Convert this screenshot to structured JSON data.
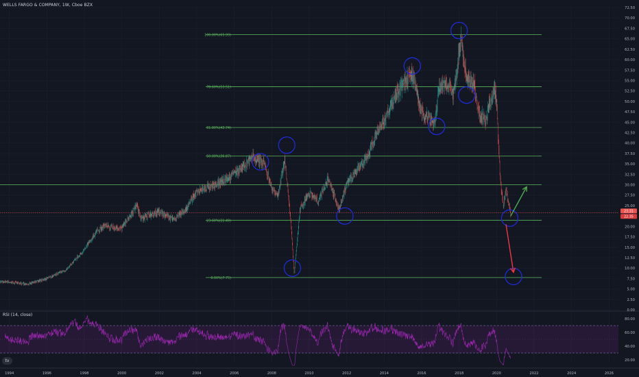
{
  "header": {
    "title": "WELLS FARGO & COMPANY, 1W, Cboe BZX"
  },
  "rsi_panel": {
    "label": "RSI (14, close)",
    "yticks": [
      "80.00",
      "60.00",
      "40.00",
      "20.00"
    ]
  },
  "logo": {
    "text": "tv"
  },
  "price_tags": {
    "upper": "23.31",
    "lower": "22.35"
  },
  "colors": {
    "background": "#131722",
    "fib": "#5cb85c",
    "candle_up": "#26a69a",
    "candle_down": "#ef5350",
    "annotation": "#1f2bd6",
    "arrow_up": "#4caf50",
    "arrow_down": "#f23645",
    "rsi": "#9c27b0"
  },
  "chart_data": [
    {
      "type": "candlestick",
      "title": "WELLS FARGO & COMPANY, 1W, Cboe BZX",
      "x_ticks": [
        "1994",
        "1996",
        "1998",
        "2000",
        "2002",
        "2004",
        "2006",
        "2008",
        "2010",
        "2012",
        "2014",
        "2016",
        "2018",
        "2020",
        "2022",
        "2024",
        "2026"
      ],
      "y_ticks": [
        "0.00",
        "2.50",
        "5.00",
        "7.50",
        "10.00",
        "12.50",
        "15.00",
        "17.50",
        "20.00",
        "22.50",
        "25.00",
        "27.50",
        "30.00",
        "32.50",
        "35.00",
        "37.50",
        "40.00",
        "42.50",
        "45.00",
        "47.50",
        "50.00",
        "52.50",
        "55.00",
        "57.50",
        "60.00",
        "62.50",
        "65.00",
        "67.50",
        "70.00",
        "72.50"
      ],
      "ylim": [
        0,
        73
      ],
      "price_path": [
        [
          1993.5,
          6.8
        ],
        [
          1995.0,
          6.2
        ],
        [
          1996.0,
          7.5
        ],
        [
          1997.0,
          9.5
        ],
        [
          1998.0,
          14.5
        ],
        [
          1998.6,
          18.5
        ],
        [
          1999.0,
          20.0
        ],
        [
          2000.0,
          19.5
        ],
        [
          2000.8,
          25.0
        ],
        [
          2001.0,
          22.0
        ],
        [
          2002.0,
          23.5
        ],
        [
          2002.8,
          21.5
        ],
        [
          2003.5,
          24.5
        ],
        [
          2004.0,
          28.5
        ],
        [
          2005.0,
          30.0
        ],
        [
          2006.0,
          32.5
        ],
        [
          2007.0,
          36.5
        ],
        [
          2007.6,
          35.0
        ],
        [
          2008.0,
          29.0
        ],
        [
          2008.3,
          27.0
        ],
        [
          2008.7,
          36.0
        ],
        [
          2009.0,
          22.0
        ],
        [
          2009.2,
          8.5
        ],
        [
          2009.5,
          24.0
        ],
        [
          2010.0,
          28.0
        ],
        [
          2010.5,
          26.0
        ],
        [
          2011.0,
          31.5
        ],
        [
          2011.6,
          24.0
        ],
        [
          2012.0,
          30.5
        ],
        [
          2012.6,
          34.0
        ],
        [
          2013.0,
          36.0
        ],
        [
          2013.6,
          42.5
        ],
        [
          2014.0,
          45.5
        ],
        [
          2014.8,
          53.0
        ],
        [
          2015.5,
          56.5
        ],
        [
          2015.8,
          51.0
        ],
        [
          2016.0,
          47.5
        ],
        [
          2016.7,
          44.5
        ],
        [
          2016.9,
          53.0
        ],
        [
          2017.3,
          55.0
        ],
        [
          2017.7,
          51.5
        ],
        [
          2018.1,
          65.0
        ],
        [
          2018.4,
          55.0
        ],
        [
          2018.8,
          54.0
        ],
        [
          2019.0,
          47.5
        ],
        [
          2019.4,
          45.5
        ],
        [
          2019.9,
          53.5
        ],
        [
          2020.0,
          49.0
        ],
        [
          2020.2,
          31.0
        ],
        [
          2020.35,
          25.0
        ],
        [
          2020.5,
          29.0
        ],
        [
          2020.75,
          23.0
        ]
      ],
      "fibonacci": [
        {
          "label": "100.00%(65.99)",
          "value": 65.99
        },
        {
          "label": "78.60%(53.51)",
          "value": 53.51
        },
        {
          "label": "61.80%(43.74)",
          "value": 43.74
        },
        {
          "label": "50.00%(36.87)",
          "value": 36.87
        },
        {
          "label": "23.60%(21.49)",
          "value": 21.49
        },
        {
          "label": "0.00%(7.75)",
          "value": 7.75
        }
      ],
      "extra_levels": [
        30.0
      ],
      "annotations": {
        "circles": [
          {
            "x": 2007.4,
            "y": 35.5
          },
          {
            "x": 2008.8,
            "y": 39.5
          },
          {
            "x": 2009.1,
            "y": 10.0
          },
          {
            "x": 2011.9,
            "y": 22.5
          },
          {
            "x": 2015.5,
            "y": 58.5
          },
          {
            "x": 2016.8,
            "y": 44.0
          },
          {
            "x": 2018.0,
            "y": 67.0
          },
          {
            "x": 2018.4,
            "y": 51.5
          },
          {
            "x": 2020.7,
            "y": 22.0
          },
          {
            "x": 2020.9,
            "y": 8.0
          }
        ],
        "arrow_up": {
          "from": [
            2020.75,
            22.5
          ],
          "to": [
            2021.6,
            29.5
          ]
        },
        "arrow_down": {
          "from": [
            2020.5,
            20.5
          ],
          "to": [
            2020.9,
            9.0
          ]
        }
      }
    },
    {
      "type": "line",
      "title": "RSI (14, close)",
      "ylim": [
        15,
        85
      ],
      "levels": [
        70,
        30
      ],
      "range_band": [
        30,
        70
      ]
    }
  ]
}
